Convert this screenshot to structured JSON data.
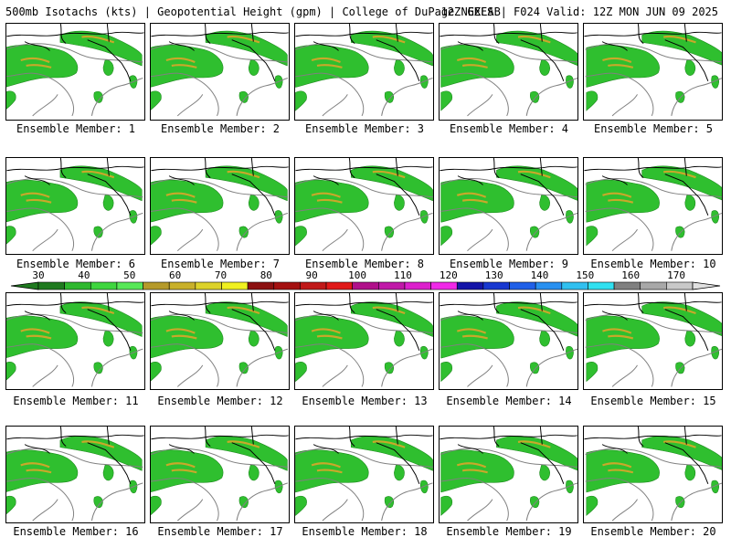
{
  "header": {
    "left": "500mb Isotachs (kts) | Geopotential Height (gpm) | College of DuPage NEXLAB",
    "right": "12Z GEFS | F024 Valid: 12Z MON JUN 09 2025"
  },
  "panels": [
    {
      "label": "Ensemble Member: 1"
    },
    {
      "label": "Ensemble Member: 2"
    },
    {
      "label": "Ensemble Member: 3"
    },
    {
      "label": "Ensemble Member: 4"
    },
    {
      "label": "Ensemble Member: 5"
    },
    {
      "label": "Ensemble Member: 6"
    },
    {
      "label": "Ensemble Member: 7"
    },
    {
      "label": "Ensemble Member: 8"
    },
    {
      "label": "Ensemble Member: 9"
    },
    {
      "label": "Ensemble Member: 10"
    },
    {
      "label": "Ensemble Member: 11"
    },
    {
      "label": "Ensemble Member: 12"
    },
    {
      "label": "Ensemble Member: 13"
    },
    {
      "label": "Ensemble Member: 14"
    },
    {
      "label": "Ensemble Member: 15"
    },
    {
      "label": "Ensemble Member: 16"
    },
    {
      "label": "Ensemble Member: 17"
    },
    {
      "label": "Ensemble Member: 18"
    },
    {
      "label": "Ensemble Member: 19"
    },
    {
      "label": "Ensemble Member: 20"
    }
  ],
  "colorbar": {
    "labels": [
      "30",
      "40",
      "50",
      "60",
      "70",
      "80",
      "90",
      "100",
      "110",
      "120",
      "130",
      "140",
      "150",
      "160",
      "170"
    ],
    "colors": [
      "#1f7a1f",
      "#2eb82e",
      "#3ed63e",
      "#57e857",
      "#b59a2a",
      "#c8b02a",
      "#dcd22a",
      "#f0f020",
      "#8c1010",
      "#a41010",
      "#c01818",
      "#e01818",
      "#b0108a",
      "#c018a8",
      "#dc20cc",
      "#f028e8",
      "#1414a8",
      "#1838d0",
      "#2060e8",
      "#2890f0",
      "#30c0f0",
      "#30e0f0",
      "#808080",
      "#a8a8a8",
      "#c8c8c8"
    ]
  }
}
